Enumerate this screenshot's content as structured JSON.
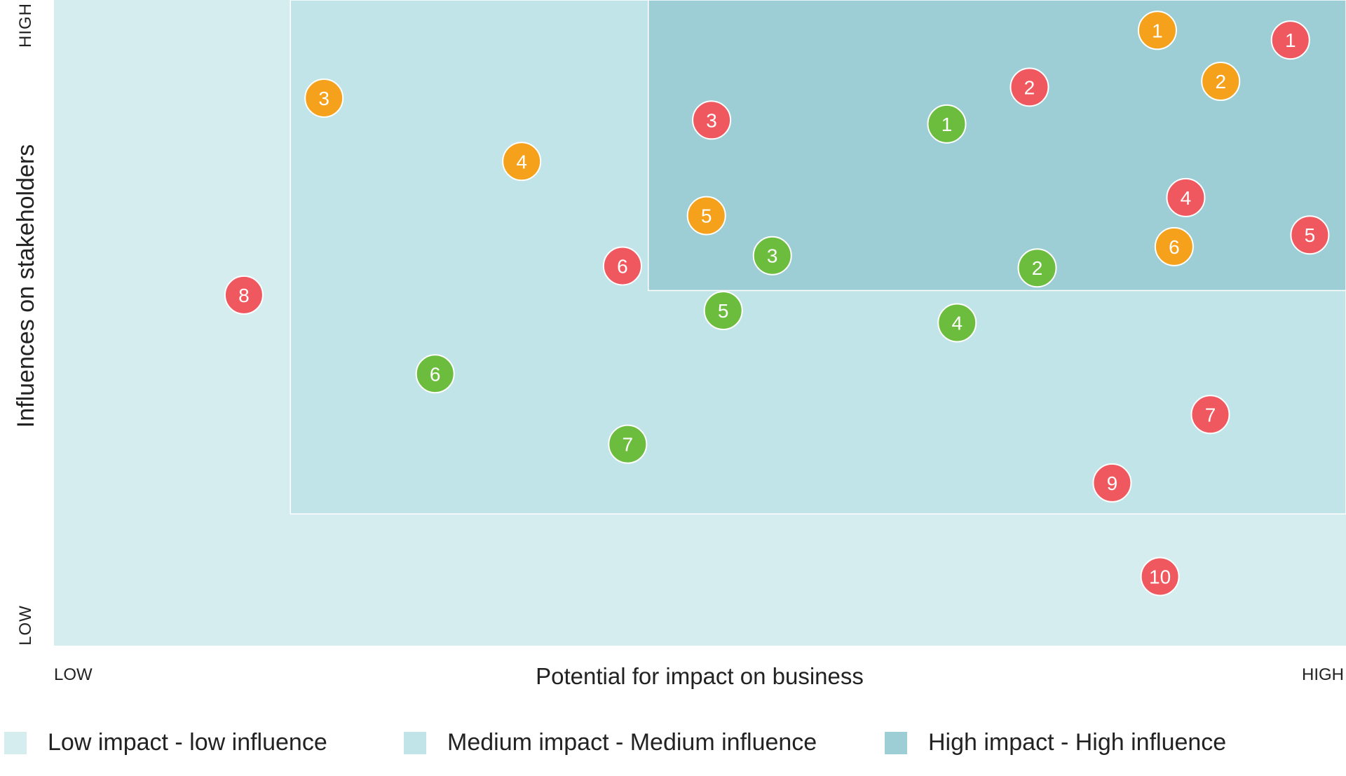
{
  "chart_data": {
    "type": "scatter",
    "xlabel": "Potential for impact on business",
    "ylabel": "Influences on stakeholders",
    "x_low_label": "LOW",
    "x_high_label": "HIGH",
    "y_low_label": "LOW",
    "y_high_label": "HIGH",
    "xlim": [
      0,
      100
    ],
    "ylim": [
      0,
      100
    ],
    "grid": false,
    "legend_position": "bottom",
    "zones": [
      {
        "name": "Low impact - low influence",
        "color": "#d6edf0",
        "x": [
          0,
          100
        ],
        "y": [
          0,
          100
        ]
      },
      {
        "name": "Medium impact - Medium influence",
        "color": "#c1e4e8",
        "x": [
          18.3,
          100
        ],
        "y": [
          20.4,
          100
        ]
      },
      {
        "name": "High impact - High influence",
        "color": "#9dcdd5",
        "x": [
          46.0,
          100
        ],
        "y": [
          55.0,
          100
        ]
      }
    ],
    "series": [
      {
        "color": "#f05860",
        "points": [
          {
            "label": "1",
            "x": 95.7,
            "y": 93.8
          },
          {
            "label": "2",
            "x": 75.5,
            "y": 86.5
          },
          {
            "label": "3",
            "x": 50.9,
            "y": 81.4
          },
          {
            "label": "4",
            "x": 87.6,
            "y": 69.4
          },
          {
            "label": "5",
            "x": 97.2,
            "y": 63.6
          },
          {
            "label": "6",
            "x": 44.0,
            "y": 58.8
          },
          {
            "label": "7",
            "x": 89.5,
            "y": 35.8
          },
          {
            "label": "8",
            "x": 14.7,
            "y": 54.3
          },
          {
            "label": "9",
            "x": 81.9,
            "y": 25.2
          },
          {
            "label": "10",
            "x": 85.6,
            "y": 10.7
          }
        ]
      },
      {
        "color": "#f5a11c",
        "points": [
          {
            "label": "1",
            "x": 85.4,
            "y": 95.3
          },
          {
            "label": "2",
            "x": 90.3,
            "y": 87.4
          },
          {
            "label": "3",
            "x": 20.9,
            "y": 84.8
          },
          {
            "label": "4",
            "x": 36.2,
            "y": 75.0
          },
          {
            "label": "5",
            "x": 50.5,
            "y": 66.6
          },
          {
            "label": "6",
            "x": 86.7,
            "y": 61.8
          }
        ]
      },
      {
        "color": "#6cbd3e",
        "points": [
          {
            "label": "1",
            "x": 69.1,
            "y": 80.8
          },
          {
            "label": "2",
            "x": 76.1,
            "y": 58.5
          },
          {
            "label": "3",
            "x": 55.6,
            "y": 60.4
          },
          {
            "label": "4",
            "x": 69.9,
            "y": 50.0
          },
          {
            "label": "5",
            "x": 51.8,
            "y": 51.9
          },
          {
            "label": "6",
            "x": 29.5,
            "y": 42.1
          },
          {
            "label": "7",
            "x": 44.4,
            "y": 31.2
          }
        ]
      }
    ]
  }
}
